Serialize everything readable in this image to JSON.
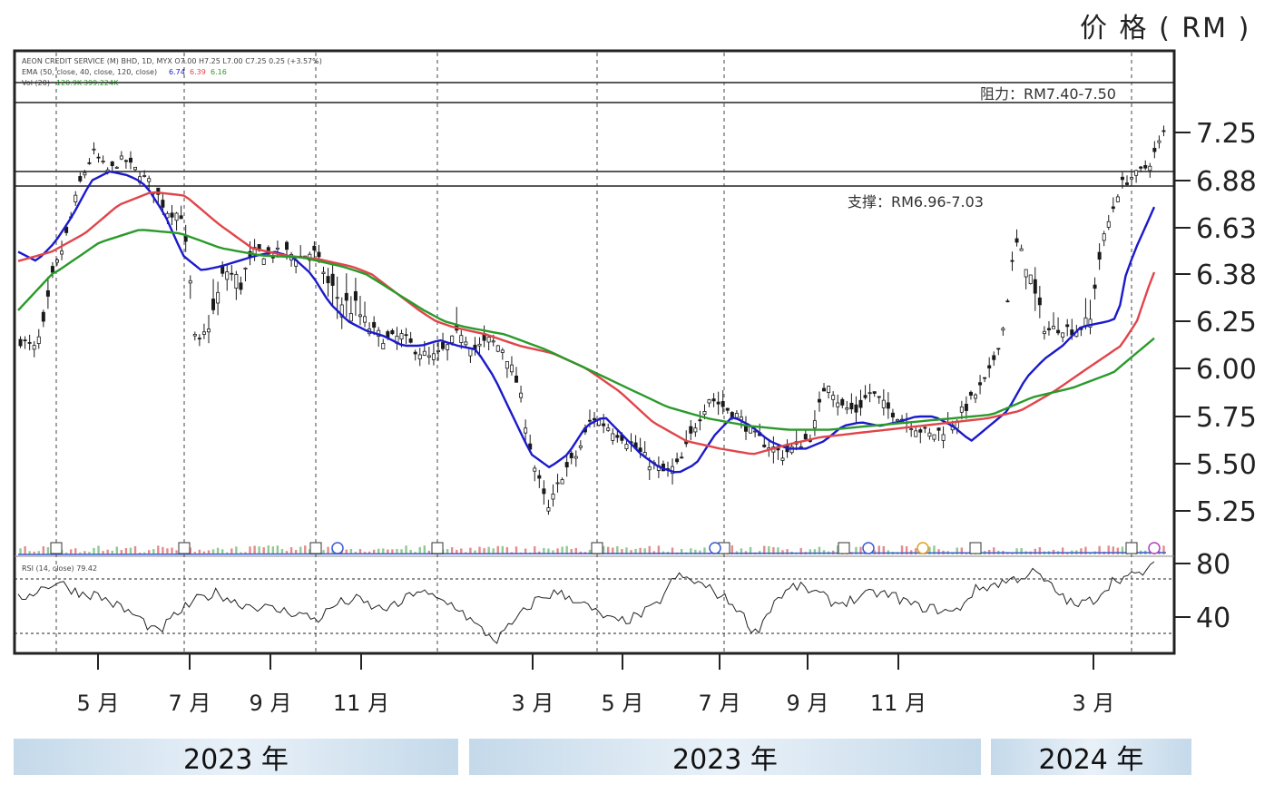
{
  "unit_label": "价 格 ( RM )",
  "legend": {
    "line1": "AEON CREDIT SERVICE (M) BHD, 1D, MYX  O7.00  H7.25  L7.00  C7.25  0.25 (+3.57%)",
    "line2": "EMA (50, close, 40, close, 120, close)",
    "ema_values": [
      "6.74",
      "6.39",
      "6.16"
    ],
    "line3": "Vol (20)",
    "vol_values": [
      "120.9K",
      "399.224K"
    ],
    "rsi": "RSI (14, close) 79.42"
  },
  "annotations": {
    "resistance": "阻力：RM7.40-7.50",
    "support": "支撑：RM6.96-7.03"
  },
  "x_labels": [
    "5 月",
    "7 月",
    "9 月",
    "11 月",
    "3 月",
    "5 月",
    "7 月",
    "9 月",
    "11 月",
    "3 月"
  ],
  "year_bands": [
    "2023 年",
    "2023 年",
    "2024 年"
  ],
  "colors": {
    "ema_fast": "#1a1acc",
    "ema_mid": "#e0454a",
    "ema_slow": "#2a9a2a",
    "candle": "#1a1a1a",
    "frame": "#222222"
  },
  "chart_data": [
    {
      "type": "line",
      "title": "AEON CREDIT SERVICE (M) BHD",
      "ylabel": "价 格 ( RM )",
      "y_ticks": [
        "7.25",
        "6.88",
        "6.63",
        "6.38",
        "6.25",
        "6.00",
        "5.75",
        "5.50",
        "5.25"
      ],
      "x_ticks": [
        "5 月",
        "7 月",
        "9 月",
        "11 月",
        "3 月",
        "5 月",
        "7 月",
        "9 月",
        "11 月",
        "3 月"
      ],
      "horizontal_levels": [
        {
          "label": "阻力：RM7.40-7.50",
          "values": [
            7.4,
            7.5
          ]
        },
        {
          "label": "支撑：RM6.96-7.03",
          "values": [
            6.96,
            7.03
          ]
        }
      ],
      "series": [
        {
          "name": "price",
          "values": [
            6.15,
            6.1,
            6.32,
            6.55,
            6.85,
            7.1,
            6.95,
            7.05,
            6.95,
            6.85,
            6.72,
            6.7,
            6.1,
            6.25,
            6.4,
            6.35,
            6.5,
            6.48,
            6.5,
            6.47,
            6.5,
            6.35,
            6.3,
            6.28,
            6.2,
            6.15,
            6.17,
            6.1,
            6.05,
            6.1,
            6.2,
            6.1,
            6.15,
            6.1,
            5.9,
            5.5,
            5.25,
            5.45,
            5.55,
            5.75,
            5.7,
            5.65,
            5.58,
            5.5,
            5.45,
            5.5,
            5.7,
            5.85,
            5.8,
            5.75,
            5.65,
            5.6,
            5.55,
            5.6,
            5.65,
            5.95,
            5.8,
            5.78,
            5.88,
            5.8,
            5.75,
            5.7,
            5.65,
            5.68,
            5.75,
            5.85,
            5.95,
            6.2,
            6.55,
            6.35,
            6.2,
            6.22,
            6.2,
            6.25,
            6.6,
            6.85,
            6.92,
            7.0,
            7.25
          ]
        },
        {
          "name": "EMA 50",
          "values": [
            6.5,
            6.45,
            6.55,
            6.7,
            6.88,
            6.95,
            6.92,
            6.85,
            6.7,
            6.48,
            6.4,
            6.42,
            6.45,
            6.48,
            6.5,
            6.47,
            6.38,
            6.3,
            6.25,
            6.2,
            6.17,
            6.12,
            6.12,
            6.15,
            6.12,
            6.1,
            5.95,
            5.75,
            5.55,
            5.48,
            5.55,
            5.7,
            5.75,
            5.65,
            5.55,
            5.48,
            5.45,
            5.5,
            5.65,
            5.75,
            5.7,
            5.62,
            5.58,
            5.58,
            5.62,
            5.7,
            5.72,
            5.7,
            5.72,
            5.75,
            5.75,
            5.7,
            5.62,
            5.7,
            5.78,
            5.95,
            6.05,
            6.12,
            6.22,
            6.24,
            6.26,
            6.52,
            6.74
          ]
        },
        {
          "name": "EMA 40",
          "values": [
            6.45,
            6.5,
            6.6,
            6.75,
            6.82,
            6.8,
            6.65,
            6.52,
            6.48,
            6.46,
            6.42,
            6.35,
            6.28,
            6.22,
            6.18,
            6.12,
            6.08,
            6.0,
            5.88,
            5.72,
            5.62,
            5.58,
            5.55,
            5.6,
            5.64,
            5.66,
            5.68,
            5.7,
            5.72,
            5.74,
            5.78,
            5.88,
            6.0,
            6.12,
            6.39
          ]
        },
        {
          "name": "EMA 120",
          "values": [
            6.28,
            6.4,
            6.55,
            6.62,
            6.6,
            6.52,
            6.48,
            6.47,
            6.42,
            6.35,
            6.28,
            6.22,
            6.18,
            6.1,
            6.0,
            5.9,
            5.8,
            5.74,
            5.7,
            5.68,
            5.68,
            5.7,
            5.72,
            5.74,
            5.76,
            5.85,
            5.9,
            5.98,
            6.16
          ]
        }
      ]
    },
    {
      "type": "line",
      "title": "RSI (14, close) 79.42",
      "y_ticks": [
        "80",
        "40"
      ],
      "levels": [
        70,
        30
      ],
      "series": [
        {
          "name": "RSI (14)",
          "values": [
            55,
            62,
            68,
            60,
            58,
            50,
            42,
            30,
            45,
            55,
            60,
            52,
            50,
            47,
            45,
            40,
            52,
            55,
            48,
            50,
            62,
            55,
            50,
            35,
            25,
            40,
            55,
            60,
            55,
            45,
            38,
            42,
            50,
            72,
            68,
            60,
            50,
            30,
            55,
            65,
            60,
            52,
            55,
            60,
            57,
            50,
            48,
            45,
            62,
            66,
            70,
            75,
            62,
            50,
            55,
            70,
            72,
            79
          ]
        }
      ]
    }
  ]
}
